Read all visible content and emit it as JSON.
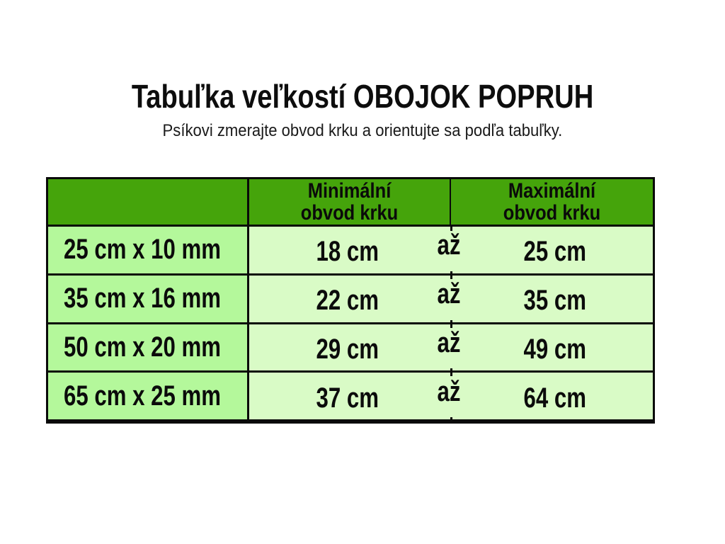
{
  "page": {
    "title": "Tabuľka veľkostí OBOJOK POPRUH",
    "subtitle": "Psíkovi zmerajte obvod krku a orientujte sa podľa tabuľky."
  },
  "table": {
    "header": {
      "min": {
        "line1": "Minimální",
        "line2": "obvod krku"
      },
      "max": {
        "line1": "Maximální",
        "line2": "obvod krku"
      }
    },
    "rows": [
      {
        "size": "25 cm x 10 mm",
        "min": "18 cm",
        "conj": "až",
        "max": "25 cm"
      },
      {
        "size": "35 cm x 16 mm",
        "min": "22 cm",
        "conj": "až",
        "max": "35 cm"
      },
      {
        "size": "50 cm x 20 mm",
        "min": "29 cm",
        "conj": "až",
        "max": "49 cm"
      },
      {
        "size": "65 cm x 25 mm",
        "min": "37 cm",
        "conj": "až",
        "max": "64 cm"
      }
    ]
  },
  "colors": {
    "header_green": "#45a40b",
    "size_column_green": "#b4f89b",
    "range_cell_green": "#d9fbc6",
    "border_black": "#0a0a0a",
    "background": "#ffffff"
  },
  "chart_data": {
    "type": "table",
    "title": "Tabuľka veľkostí OBOJOK POPRUH",
    "subtitle": "Psíkovi zmerajte obvod krku a orientujte sa podľa tabuľky.",
    "columns": [
      "",
      "Minimální obvod krku",
      "Maximální obvod krku"
    ],
    "rows": [
      {
        "size": "25 cm x 10 mm",
        "min_cm": 18,
        "max_cm": 25
      },
      {
        "size": "35 cm x 16 mm",
        "min_cm": 22,
        "max_cm": 35
      },
      {
        "size": "50 cm x 20 mm",
        "min_cm": 29,
        "max_cm": 49
      },
      {
        "size": "65 cm x 25 mm",
        "min_cm": 37,
        "max_cm": 64
      }
    ],
    "range_conjunction": "až",
    "layout": "header row green; first column light green; min/max merged row cells pale green with 'až' between values"
  }
}
